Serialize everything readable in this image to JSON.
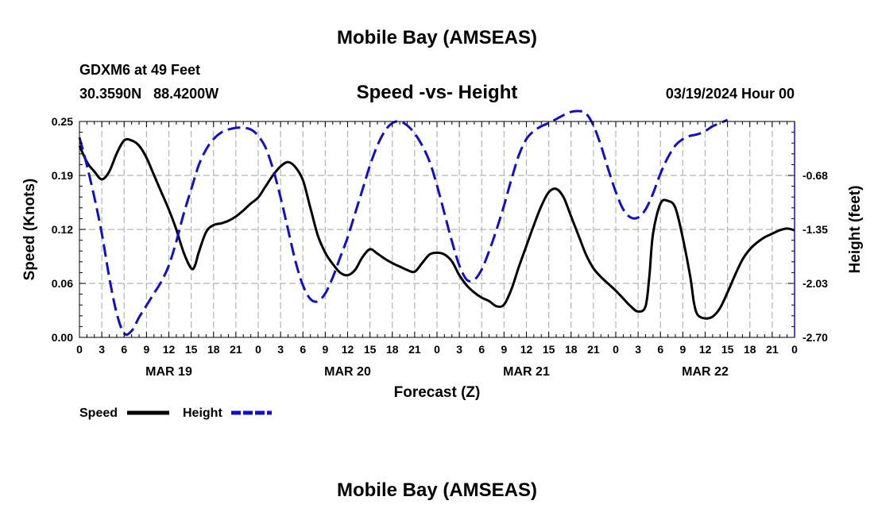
{
  "page": {
    "title": "Mobile Bay (AMSEAS)",
    "footer_title": "Mobile Bay (AMSEAS)",
    "station_line": "GDXM6 at 49 Feet",
    "coords_line": "30.3590N   88.4200W",
    "chart_subtitle": "Speed -vs- Height",
    "run_time": "03/19/2024 Hour 00"
  },
  "colors": {
    "speed": "#000000",
    "height": "#1010c8",
    "grid": "#b4b4b4"
  },
  "chart_data": {
    "type": "line",
    "title": "Speed -vs- Height",
    "xlabel": "Forecast (Z)",
    "ylabel_left": "Speed (Knots)",
    "ylabel_right": "Height (feet)",
    "x_range_hours": [
      0,
      96
    ],
    "x_tick_labels": [
      "0",
      "3",
      "6",
      "9",
      "12",
      "15",
      "18",
      "21",
      "0",
      "3",
      "6",
      "9",
      "12",
      "15",
      "18",
      "21",
      "0",
      "3",
      "6",
      "9",
      "12",
      "15",
      "18",
      "21",
      "0",
      "3",
      "6",
      "9",
      "12",
      "15",
      "18",
      "21",
      "0"
    ],
    "day_labels": [
      {
        "label": "MAR 19",
        "hour": 12
      },
      {
        "label": "MAR 20",
        "hour": 36
      },
      {
        "label": "MAR 21",
        "hour": 60
      },
      {
        "label": "MAR 22",
        "hour": 84
      }
    ],
    "y_left": {
      "range": [
        0,
        0.25
      ],
      "ticks": [
        "0.00",
        "0.06",
        "0.12",
        "0.19",
        "0.25"
      ],
      "tick_values": [
        0,
        0.0625,
        0.125,
        0.1875,
        0.25
      ]
    },
    "y_right": {
      "range": [
        -2.7,
        0.0
      ],
      "ticks": [
        "-2.70",
        "-2.03",
        "-1.35",
        "-0.68"
      ],
      "tick_values": [
        -2.7,
        -2.025,
        -1.35,
        -0.675
      ]
    },
    "grid": true,
    "legend": {
      "position": "bottom-left",
      "entries": [
        {
          "label": "Speed",
          "style": "solid"
        },
        {
          "label": "Height",
          "style": "dashed"
        }
      ]
    },
    "series": [
      {
        "name": "Speed",
        "axis": "left",
        "style": "solid",
        "points": [
          [
            0,
            0.222
          ],
          [
            1,
            0.203
          ],
          [
            2,
            0.192
          ],
          [
            3,
            0.183
          ],
          [
            4,
            0.192
          ],
          [
            5,
            0.213
          ],
          [
            6,
            0.228
          ],
          [
            7,
            0.228
          ],
          [
            8,
            0.222
          ],
          [
            9,
            0.208
          ],
          [
            10,
            0.188
          ],
          [
            11,
            0.168
          ],
          [
            12,
            0.148
          ],
          [
            13,
            0.125
          ],
          [
            14,
            0.098
          ],
          [
            15,
            0.08
          ],
          [
            15.5,
            0.083
          ],
          [
            16,
            0.098
          ],
          [
            17,
            0.122
          ],
          [
            18,
            0.13
          ],
          [
            19,
            0.132
          ],
          [
            20,
            0.135
          ],
          [
            21,
            0.14
          ],
          [
            22,
            0.147
          ],
          [
            23,
            0.155
          ],
          [
            24,
            0.162
          ],
          [
            25,
            0.175
          ],
          [
            26,
            0.188
          ],
          [
            27,
            0.198
          ],
          [
            28,
            0.203
          ],
          [
            29,
            0.197
          ],
          [
            30,
            0.182
          ],
          [
            31,
            0.15
          ],
          [
            32,
            0.118
          ],
          [
            33,
            0.098
          ],
          [
            34,
            0.085
          ],
          [
            35,
            0.075
          ],
          [
            36,
            0.072
          ],
          [
            37,
            0.078
          ],
          [
            38,
            0.093
          ],
          [
            39,
            0.102
          ],
          [
            40,
            0.097
          ],
          [
            41,
            0.091
          ],
          [
            42,
            0.086
          ],
          [
            43,
            0.082
          ],
          [
            44,
            0.078
          ],
          [
            45,
            0.076
          ],
          [
            46,
            0.086
          ],
          [
            47,
            0.096
          ],
          [
            48,
            0.098
          ],
          [
            49,
            0.096
          ],
          [
            50,
            0.088
          ],
          [
            51,
            0.072
          ],
          [
            52,
            0.06
          ],
          [
            53,
            0.052
          ],
          [
            54,
            0.046
          ],
          [
            55,
            0.042
          ],
          [
            56,
            0.036
          ],
          [
            57,
            0.038
          ],
          [
            58,
            0.056
          ],
          [
            59,
            0.082
          ],
          [
            60,
            0.106
          ],
          [
            61,
            0.13
          ],
          [
            62,
            0.152
          ],
          [
            63,
            0.168
          ],
          [
            64,
            0.172
          ],
          [
            65,
            0.162
          ],
          [
            66,
            0.14
          ],
          [
            67,
            0.118
          ],
          [
            68,
            0.096
          ],
          [
            69,
            0.08
          ],
          [
            70,
            0.07
          ],
          [
            71,
            0.062
          ],
          [
            72,
            0.054
          ],
          [
            73,
            0.045
          ],
          [
            74,
            0.036
          ],
          [
            75,
            0.03
          ],
          [
            76,
            0.036
          ],
          [
            76.5,
            0.07
          ],
          [
            77,
            0.12
          ],
          [
            78,
            0.155
          ],
          [
            79,
            0.158
          ],
          [
            80,
            0.15
          ],
          [
            81,
            0.115
          ],
          [
            82,
            0.07
          ],
          [
            82.5,
            0.04
          ],
          [
            83,
            0.026
          ],
          [
            84,
            0.022
          ],
          [
            85,
            0.024
          ],
          [
            86,
            0.034
          ],
          [
            87,
            0.052
          ],
          [
            88,
            0.072
          ],
          [
            89,
            0.09
          ],
          [
            90,
            0.102
          ],
          [
            91,
            0.11
          ],
          [
            92,
            0.116
          ],
          [
            93,
            0.12
          ],
          [
            94,
            0.124
          ],
          [
            95,
            0.126
          ],
          [
            96,
            0.124
          ]
        ]
      },
      {
        "name": "Height",
        "axis": "right",
        "style": "dashed",
        "points": [
          [
            0,
            -0.2
          ],
          [
            1,
            -0.55
          ],
          [
            2,
            -0.95
          ],
          [
            3,
            -1.4
          ],
          [
            4,
            -1.95
          ],
          [
            5,
            -2.4
          ],
          [
            6,
            -2.65
          ],
          [
            7,
            -2.62
          ],
          [
            8,
            -2.45
          ],
          [
            9,
            -2.3
          ],
          [
            10,
            -2.15
          ],
          [
            11,
            -2.0
          ],
          [
            12,
            -1.8
          ],
          [
            13,
            -1.5
          ],
          [
            14,
            -1.15
          ],
          [
            15,
            -0.85
          ],
          [
            16,
            -0.55
          ],
          [
            17,
            -0.35
          ],
          [
            18,
            -0.22
          ],
          [
            19,
            -0.14
          ],
          [
            20,
            -0.1
          ],
          [
            21,
            -0.08
          ],
          [
            22,
            -0.08
          ],
          [
            23,
            -0.1
          ],
          [
            24,
            -0.18
          ],
          [
            25,
            -0.33
          ],
          [
            26,
            -0.6
          ],
          [
            27,
            -0.95
          ],
          [
            28,
            -1.35
          ],
          [
            29,
            -1.75
          ],
          [
            30,
            -2.05
          ],
          [
            31,
            -2.22
          ],
          [
            32,
            -2.25
          ],
          [
            33,
            -2.15
          ],
          [
            34,
            -1.95
          ],
          [
            35,
            -1.7
          ],
          [
            36,
            -1.45
          ],
          [
            37,
            -1.15
          ],
          [
            38,
            -0.85
          ],
          [
            39,
            -0.55
          ],
          [
            40,
            -0.3
          ],
          [
            41,
            -0.12
          ],
          [
            42,
            -0.02
          ],
          [
            43,
            0.0
          ],
          [
            44,
            -0.05
          ],
          [
            45,
            -0.15
          ],
          [
            46,
            -0.3
          ],
          [
            47,
            -0.5
          ],
          [
            48,
            -0.8
          ],
          [
            49,
            -1.15
          ],
          [
            50,
            -1.5
          ],
          [
            51,
            -1.8
          ],
          [
            52,
            -1.98
          ],
          [
            53,
            -1.98
          ],
          [
            54,
            -1.85
          ],
          [
            55,
            -1.62
          ],
          [
            56,
            -1.35
          ],
          [
            57,
            -1.05
          ],
          [
            58,
            -0.72
          ],
          [
            59,
            -0.42
          ],
          [
            60,
            -0.22
          ],
          [
            61,
            -0.12
          ],
          [
            62,
            -0.06
          ],
          [
            63,
            -0.02
          ],
          [
            64,
            0.03
          ],
          [
            65,
            0.08
          ],
          [
            66,
            0.12
          ],
          [
            67,
            0.13
          ],
          [
            68,
            0.1
          ],
          [
            69,
            -0.05
          ],
          [
            70,
            -0.3
          ],
          [
            71,
            -0.6
          ],
          [
            72,
            -0.88
          ],
          [
            73,
            -1.1
          ],
          [
            74,
            -1.2
          ],
          [
            75,
            -1.2
          ],
          [
            76,
            -1.1
          ],
          [
            77,
            -0.9
          ],
          [
            78,
            -0.65
          ],
          [
            79,
            -0.45
          ],
          [
            80,
            -0.3
          ],
          [
            81,
            -0.22
          ],
          [
            82,
            -0.18
          ],
          [
            83,
            -0.16
          ],
          [
            84,
            -0.12
          ],
          [
            85,
            -0.06
          ],
          [
            86,
            -0.02
          ],
          [
            87,
            0.02
          ]
        ]
      }
    ]
  }
}
